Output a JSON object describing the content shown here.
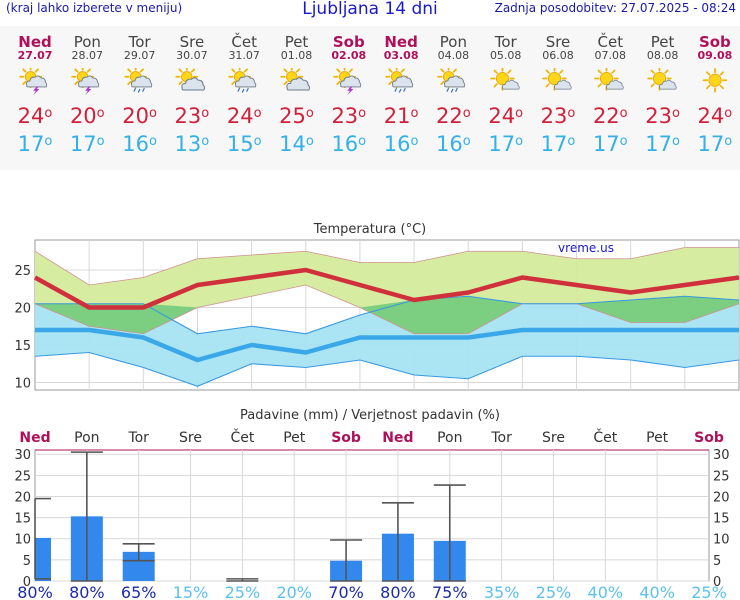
{
  "header": {
    "left_note": "(kraj lahko izberete v meniju)",
    "title": "Ljubljana 14 dni",
    "updated": "Zadnja posodobitev: 27.07.2025 - 08:24"
  },
  "days": [
    {
      "name": "Ned",
      "date": "27.07",
      "weekend": true,
      "icon": "sun-cloud-thunder-icon",
      "tmax": "24",
      "tmin": "17"
    },
    {
      "name": "Pon",
      "date": "28.07",
      "weekend": false,
      "icon": "sun-cloud-thunder-icon",
      "tmax": "20",
      "tmin": "17"
    },
    {
      "name": "Tor",
      "date": "29.07",
      "weekend": false,
      "icon": "sun-cloud-rain-icon",
      "tmax": "20",
      "tmin": "16"
    },
    {
      "name": "Sre",
      "date": "30.07",
      "weekend": false,
      "icon": "sun-cloud-icon",
      "tmax": "23",
      "tmin": "13"
    },
    {
      "name": "Čet",
      "date": "31.07",
      "weekend": false,
      "icon": "sun-cloud-rain-icon",
      "tmax": "24",
      "tmin": "15"
    },
    {
      "name": "Pet",
      "date": "01.08",
      "weekend": false,
      "icon": "sun-cloud-icon",
      "tmax": "25",
      "tmin": "14"
    },
    {
      "name": "Sob",
      "date": "02.08",
      "weekend": true,
      "icon": "sun-cloud-thunder-icon",
      "tmax": "23",
      "tmin": "16"
    },
    {
      "name": "Ned",
      "date": "03.08",
      "weekend": true,
      "icon": "sun-cloud-rain-icon",
      "tmax": "21",
      "tmin": "16"
    },
    {
      "name": "Pon",
      "date": "04.08",
      "weekend": false,
      "icon": "sun-cloud-rain-icon",
      "tmax": "22",
      "tmin": "16"
    },
    {
      "name": "Tor",
      "date": "05.08",
      "weekend": false,
      "icon": "sun-small-cloud-icon",
      "tmax": "24",
      "tmin": "17"
    },
    {
      "name": "Sre",
      "date": "06.08",
      "weekend": false,
      "icon": "sun-small-cloud-icon",
      "tmax": "23",
      "tmin": "17"
    },
    {
      "name": "Čet",
      "date": "07.08",
      "weekend": false,
      "icon": "sun-small-cloud-icon",
      "tmax": "22",
      "tmin": "17"
    },
    {
      "name": "Pet",
      "date": "08.08",
      "weekend": false,
      "icon": "sun-small-cloud-icon",
      "tmax": "23",
      "tmin": "17"
    },
    {
      "name": "Sob",
      "date": "09.08",
      "weekend": true,
      "icon": "sun-icon",
      "tmax": "24",
      "tmin": "17"
    }
  ],
  "degree_symbol": "o",
  "colors": {
    "max_line": "#d0303c",
    "min_line": "#3aa8e8",
    "max_band": "#d4ec9c",
    "min_band": "#a6e4f2",
    "overlap_band": "#7cce80",
    "precip_bar": "#3388ee",
    "weekend_text": "#b0105a",
    "prob_high": "#1a2aa8",
    "prob_low": "#5cc0ee"
  },
  "chart_data": [
    {
      "type": "area",
      "title": "Temperatura (°C)",
      "brand_label": "vreme.us",
      "categories": [
        "27.07",
        "28.07",
        "29.07",
        "30.07",
        "31.07",
        "01.08",
        "02.08",
        "03.08",
        "04.08",
        "05.08",
        "06.08",
        "07.08",
        "08.08",
        "09.08"
      ],
      "ylim": [
        9,
        29
      ],
      "yticks": [
        10,
        15,
        20,
        25
      ],
      "grid": true,
      "series": [
        {
          "role": "max_mean",
          "values": [
            24,
            20,
            20,
            23,
            24,
            25,
            23,
            21,
            22,
            24,
            23,
            22,
            23,
            24
          ]
        },
        {
          "role": "max_upper",
          "values": [
            27.5,
            23,
            24,
            26.5,
            27,
            27.5,
            26,
            26,
            27.5,
            27.5,
            26.5,
            26.5,
            28,
            28
          ]
        },
        {
          "role": "max_lower",
          "values": [
            20.5,
            17.5,
            16.5,
            20,
            21.5,
            23,
            20,
            16.5,
            16.5,
            20.5,
            20.5,
            18,
            18,
            20.5
          ]
        },
        {
          "role": "min_mean",
          "values": [
            17,
            17,
            16,
            13,
            15,
            14,
            16,
            16,
            16,
            17,
            17,
            17,
            17,
            17
          ]
        },
        {
          "role": "min_upper",
          "values": [
            20.5,
            20.5,
            20.5,
            16.5,
            17.5,
            16.5,
            19,
            21,
            21.5,
            20.5,
            20.5,
            21,
            21.5,
            21
          ]
        },
        {
          "role": "min_lower",
          "values": [
            13.5,
            14,
            12,
            9.5,
            12.5,
            12,
            13,
            11,
            10.5,
            13.5,
            13.5,
            13,
            12,
            13
          ]
        }
      ]
    },
    {
      "type": "bar",
      "title": "Padavine (mm) / Verjetnost padavin (%)",
      "categories": [
        "Ned",
        "Pon",
        "Tor",
        "Sre",
        "Čet",
        "Pet",
        "Sob",
        "Ned",
        "Pon",
        "Tor",
        "Sre",
        "Čet",
        "Pet",
        "Sob"
      ],
      "weekend": [
        true,
        false,
        false,
        false,
        false,
        false,
        true,
        true,
        false,
        false,
        false,
        false,
        false,
        true
      ],
      "ylim": [
        0,
        31
      ],
      "yticks": [
        0,
        5,
        10,
        15,
        20,
        25,
        30
      ],
      "values": [
        10.2,
        15.3,
        6.9,
        0,
        0,
        0,
        4.8,
        11.2,
        9.5,
        0,
        0,
        0,
        0,
        0
      ],
      "err_low": [
        0.5,
        0,
        4.8,
        0,
        0,
        0,
        0,
        0,
        0,
        0,
        0,
        0,
        0,
        0
      ],
      "err_high": [
        19.5,
        30.5,
        8.8,
        0,
        0.5,
        0,
        9.7,
        18.5,
        22.7,
        0,
        0,
        0,
        0,
        0
      ],
      "probability": [
        "80%",
        "80%",
        "65%",
        "15%",
        "25%",
        "20%",
        "70%",
        "80%",
        "75%",
        "35%",
        "25%",
        "40%",
        "40%",
        "25%"
      ],
      "probability_values": [
        80,
        80,
        65,
        15,
        25,
        20,
        70,
        80,
        75,
        35,
        25,
        40,
        40,
        25
      ]
    }
  ]
}
